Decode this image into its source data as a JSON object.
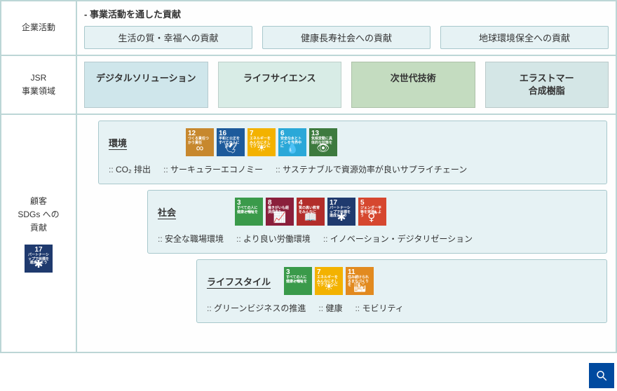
{
  "rows": {
    "corporate": {
      "label": "企業活動",
      "headline": "- 事業活動を通した貢献",
      "pills": [
        "生活の質・幸福への貢献",
        "健康長寿社会への貢献",
        "地球環境保全への貢献"
      ]
    },
    "business": {
      "label_l1": "JSR",
      "label_l2": "事業領域",
      "items": [
        {
          "label": "デジタルソリューション"
        },
        {
          "label": "ライフサイエンス"
        },
        {
          "label": "次世代技術"
        },
        {
          "label_l1": "エラストマー",
          "label_l2": "合成樹脂"
        }
      ]
    },
    "sdgs": {
      "label_l1": "顧客",
      "label_l2": "SDGs への",
      "label_l3": "貢献",
      "side_badge": {
        "num": "17",
        "txt": "パートナーシップで目標を達成しよう",
        "color": "#1f3a6e",
        "icon": "✱"
      },
      "panels": [
        {
          "title": "環境",
          "badges": [
            {
              "num": "12",
              "txt": "つくる責任つかう責任",
              "color": "#c7882e",
              "icon": "∞"
            },
            {
              "num": "16",
              "txt": "平和と公正をすべての人に",
              "color": "#1d5a9b",
              "icon": "🕊"
            },
            {
              "num": "7",
              "txt": "エネルギーをみんなにそしてクリーンに",
              "color": "#f3b200",
              "icon": "☀"
            },
            {
              "num": "6",
              "txt": "安全な水とトイレを世界中に",
              "color": "#2aa8d8",
              "icon": "💧"
            },
            {
              "num": "13",
              "txt": "気候変動に具体的な対策を",
              "color": "#3d7a3e",
              "icon": "👁"
            }
          ],
          "items": [
            "CO₂ 排出",
            "サーキュラーエコノミー",
            "サステナブルで資源効率が良いサプライチェーン"
          ]
        },
        {
          "title": "社会",
          "badges": [
            {
              "num": "3",
              "txt": "すべての人に健康と福祉を",
              "color": "#3a9a4a",
              "icon": "⁀"
            },
            {
              "num": "8",
              "txt": "働きがいも経済成長も",
              "color": "#8a1f3b",
              "icon": "📈"
            },
            {
              "num": "4",
              "txt": "質の高い教育をみんなに",
              "color": "#b22d2a",
              "icon": "📖"
            },
            {
              "num": "17",
              "txt": "パートナーシップで目標を達成しよう",
              "color": "#1f3a6e",
              "icon": "✱"
            },
            {
              "num": "5",
              "txt": "ジェンダー平等を実現しよう",
              "color": "#d6472f",
              "icon": "⚥"
            }
          ],
          "items": [
            "安全な職場環境",
            "より良い労働環境",
            "イノベーション・デジタリゼーション"
          ]
        },
        {
          "title": "ライフスタイル",
          "badges": [
            {
              "num": "3",
              "txt": "すべての人に健康と福祉を",
              "color": "#3a9a4a",
              "icon": "⁀"
            },
            {
              "num": "7",
              "txt": "エネルギーをみんなにそしてクリーンに",
              "color": "#f3b200",
              "icon": "☀"
            },
            {
              "num": "11",
              "txt": "住み続けられるまちづくりを",
              "color": "#e28a1f",
              "icon": "🏙"
            }
          ],
          "items": [
            "グリーンビジネスの推進",
            "健康",
            "モビリティ"
          ]
        }
      ]
    }
  },
  "style": {
    "panel_bg": "#e6f2f4",
    "panel_border": "#a8c8cc",
    "grid_border": "#bcd6d6",
    "biz_colors": [
      "#cfe6eb",
      "#d8ece6",
      "#c4dcc0",
      "#d4e6e6"
    ],
    "search_bg": "#004a9f"
  }
}
